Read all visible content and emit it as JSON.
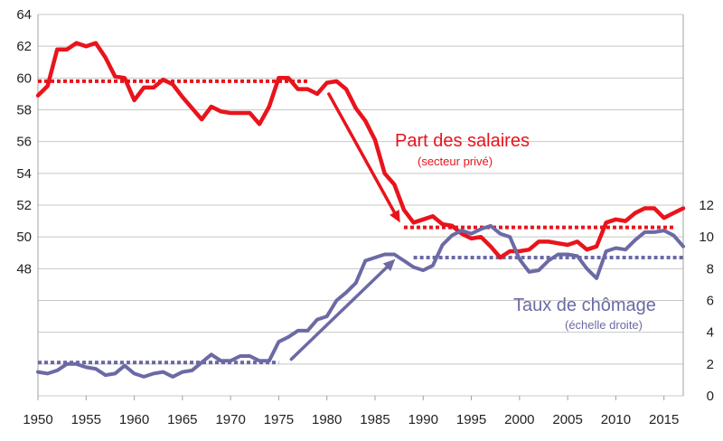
{
  "chart_data": {
    "type": "line",
    "x_ticks": [
      1950,
      1955,
      1960,
      1965,
      1970,
      1975,
      1980,
      1985,
      1990,
      1995,
      2000,
      2005,
      2010,
      2015
    ],
    "xlim": [
      1950,
      2017
    ],
    "y_left": {
      "ticks": [
        48,
        50,
        52,
        54,
        56,
        58,
        60,
        62,
        64
      ],
      "range": [
        40,
        64
      ]
    },
    "y_right": {
      "ticks": [
        0,
        2,
        4,
        6,
        8,
        10,
        12
      ],
      "range": [
        0,
        24
      ]
    },
    "grid": true,
    "colors": {
      "wage": "#e8141c",
      "unemp": "#6b6aa5",
      "grid": "#c8c8c8"
    },
    "series": [
      {
        "axis": "left",
        "annotation": "Part des salaires",
        "annotation_sub": "(secteur privé)",
        "x": [
          1950,
          1951,
          1952,
          1953,
          1954,
          1955,
          1956,
          1957,
          1958,
          1959,
          1960,
          1961,
          1962,
          1963,
          1964,
          1965,
          1966,
          1967,
          1968,
          1969,
          1970,
          1971,
          1972,
          1973,
          1974,
          1975,
          1976,
          1977,
          1978,
          1979,
          1980,
          1981,
          1982,
          1983,
          1984,
          1985,
          1986,
          1987,
          1988,
          1989,
          1990,
          1991,
          1992,
          1993,
          1994,
          1995,
          1996,
          1997,
          1998,
          1999,
          2000,
          2001,
          2002,
          2003,
          2004,
          2005,
          2006,
          2007,
          2008,
          2009,
          2010,
          2011,
          2012,
          2013,
          2014,
          2015,
          2016,
          2017
        ],
        "values": [
          58.9,
          59.5,
          61.8,
          61.8,
          62.2,
          62.0,
          62.2,
          61.3,
          60.1,
          60.0,
          58.6,
          59.4,
          59.4,
          59.9,
          59.6,
          58.8,
          58.1,
          57.4,
          58.2,
          57.9,
          57.8,
          57.8,
          57.8,
          57.1,
          58.2,
          60.0,
          60.0,
          59.3,
          59.3,
          59.0,
          59.7,
          59.8,
          59.3,
          58.1,
          57.3,
          56.1,
          54.0,
          53.3,
          51.7,
          50.9,
          51.1,
          51.3,
          50.8,
          50.7,
          50.2,
          49.9,
          50.0,
          49.4,
          48.7,
          49.1,
          49.1,
          49.2,
          49.7,
          49.7,
          49.6,
          49.5,
          49.7,
          49.2,
          49.4,
          50.9,
          51.1,
          51.0,
          51.5,
          51.8,
          51.8,
          51.2,
          51.5,
          51.8
        ]
      },
      {
        "axis": "right",
        "annotation": "Taux de chômage",
        "annotation_sub": "(échelle droite)",
        "x": [
          1950,
          1951,
          1952,
          1953,
          1954,
          1955,
          1956,
          1957,
          1958,
          1959,
          1960,
          1961,
          1962,
          1963,
          1964,
          1965,
          1966,
          1967,
          1968,
          1969,
          1970,
          1971,
          1972,
          1973,
          1974,
          1975,
          1976,
          1977,
          1978,
          1979,
          1980,
          1981,
          1982,
          1983,
          1984,
          1985,
          1986,
          1987,
          1988,
          1989,
          1990,
          1991,
          1992,
          1993,
          1994,
          1995,
          1996,
          1997,
          1998,
          1999,
          2000,
          2001,
          2002,
          2003,
          2004,
          2005,
          2006,
          2007,
          2008,
          2009,
          2010,
          2011,
          2012,
          2013,
          2014,
          2015,
          2016,
          2017
        ],
        "values": [
          1.5,
          1.4,
          1.6,
          2.0,
          2.0,
          1.8,
          1.7,
          1.3,
          1.4,
          1.9,
          1.4,
          1.2,
          1.4,
          1.5,
          1.2,
          1.5,
          1.6,
          2.1,
          2.6,
          2.2,
          2.2,
          2.5,
          2.5,
          2.2,
          2.2,
          3.4,
          3.7,
          4.1,
          4.1,
          4.8,
          5.0,
          6.0,
          6.5,
          7.1,
          8.5,
          8.7,
          8.9,
          8.9,
          8.5,
          8.1,
          7.9,
          8.2,
          9.5,
          10.1,
          10.4,
          10.2,
          10.5,
          10.7,
          10.2,
          10.0,
          8.6,
          7.8,
          7.9,
          8.5,
          8.9,
          8.9,
          8.8,
          8.0,
          7.4,
          9.1,
          9.3,
          9.2,
          9.8,
          10.3,
          10.3,
          10.4,
          10.1,
          9.4
        ]
      }
    ],
    "reference_lines": [
      {
        "series": 0,
        "value": 59.8,
        "x": [
          1950,
          1978
        ]
      },
      {
        "series": 0,
        "value": 50.6,
        "x": [
          1988,
          2016
        ]
      },
      {
        "series": 1,
        "value": 2.1,
        "x": [
          1950,
          1975
        ]
      },
      {
        "series": 1,
        "value": 8.7,
        "x": [
          1989,
          2017
        ]
      }
    ],
    "arrows": [
      {
        "series": 0,
        "from": [
          1980.2,
          59.0
        ],
        "to": [
          1987.6,
          50.9
        ]
      },
      {
        "series": 1,
        "from": [
          1976.3,
          2.3
        ],
        "to": [
          1987.1,
          8.6
        ]
      }
    ]
  }
}
